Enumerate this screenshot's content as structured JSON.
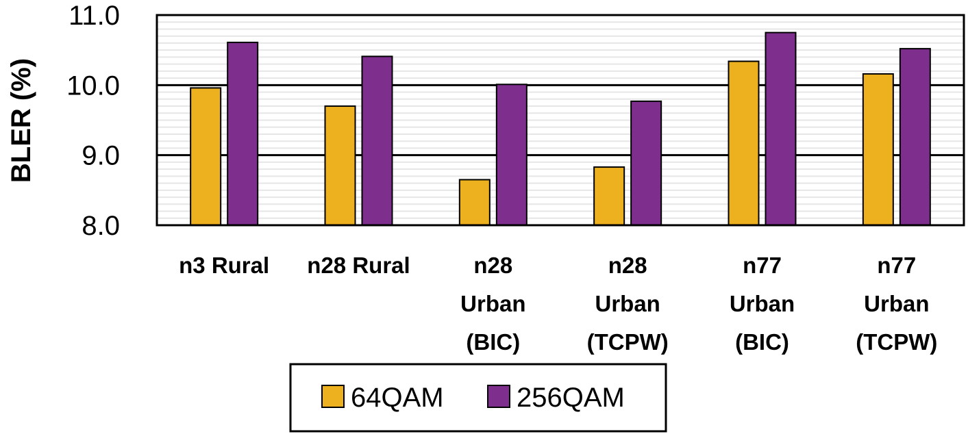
{
  "chart_data": {
    "type": "bar",
    "title": "",
    "xlabel": "",
    "ylabel": "BLER (%)",
    "ylim": [
      8.0,
      11.0
    ],
    "yticks": [
      "8.0",
      "9.0",
      "10.0",
      "11.0"
    ],
    "ytick_values": [
      8.0,
      9.0,
      10.0,
      11.0
    ],
    "minor_step": 0.1,
    "categories": [
      [
        "n3 Rural"
      ],
      [
        "n28 Rural"
      ],
      [
        "n28",
        "Urban",
        "(BIC)"
      ],
      [
        "n28",
        "Urban",
        "(TCPW)"
      ],
      [
        "n77",
        "Urban",
        "(BIC)"
      ],
      [
        "n77",
        "Urban",
        "(TCPW)"
      ]
    ],
    "series": [
      {
        "name": "64QAM",
        "color": "#EDB120",
        "values": [
          9.96,
          9.7,
          8.65,
          8.83,
          10.34,
          10.16
        ]
      },
      {
        "name": "256QAM",
        "color": "#7E2F8E",
        "values": [
          10.61,
          10.41,
          10.01,
          9.77,
          10.75,
          10.52
        ]
      }
    ],
    "legend_position": "bottom-center",
    "grid": true
  }
}
